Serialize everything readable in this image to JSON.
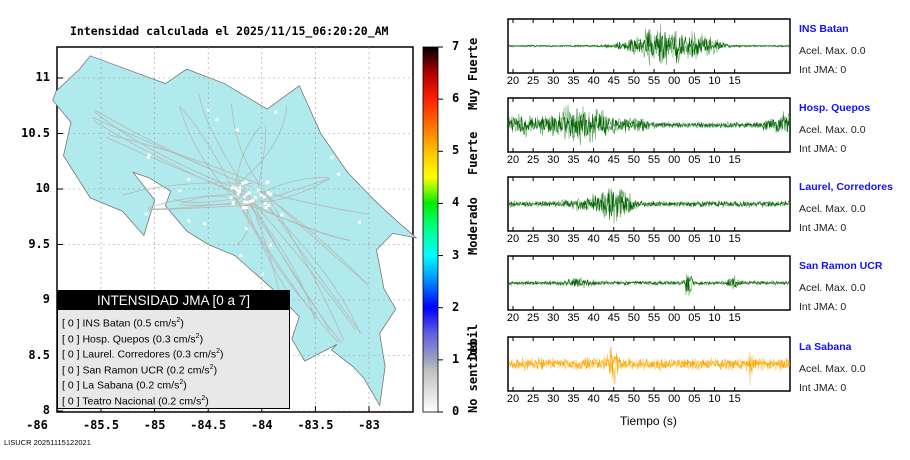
{
  "title": "Intensidad calculada el 2025/11/15_06:20:20_AM",
  "map": {
    "y_ticks": [
      "11",
      "10.5",
      "10",
      "9.5",
      "9",
      "8.5",
      "8"
    ],
    "x_ticks": [
      "-86",
      "-85.5",
      "-85",
      "-84.5",
      "-84",
      "-83.5",
      "-83"
    ],
    "land_color": "#b0eaec"
  },
  "legend": {
    "title": "INTENSIDAD JMA [0 a 7]",
    "rows": [
      {
        "jma": "[ 0 ]",
        "name": "INS Batan",
        "val": "(0.5 cm/s",
        "unit": "2",
        ")": ")"
      },
      {
        "jma": "[ 0 ]",
        "name": "Hosp. Quepos",
        "val": "(0.3 cm/s",
        "unit": "2"
      },
      {
        "jma": "[ 0 ]",
        "name": "Laurel. Corredores",
        "val": "(0.3 cm/s",
        "unit": "2"
      },
      {
        "jma": "[ 0 ]",
        "name": "San Ramon UCR",
        "val": "(0.2 cm/s",
        "unit": "2"
      },
      {
        "jma": "[ 0 ]",
        "name": "La Sabana",
        "val": "(0.2 cm/s",
        "unit": "2"
      },
      {
        "jma": "[ 0 ]",
        "name": "Teatro Nacional",
        "val": "(0.2 cm/s",
        "unit": "2"
      }
    ],
    "close_paren": ")"
  },
  "colorbar": {
    "ticks": [
      "0",
      "1",
      "2",
      "3",
      "4",
      "5",
      "6",
      "7"
    ],
    "words": [
      "No sentido",
      "Debil",
      "Moderado",
      "Fuerte",
      "Muy Fuerte"
    ]
  },
  "chart_data": {
    "type": "line",
    "xlabel": "Tiempo (s)",
    "time_ticks": [
      "20",
      "25",
      "30",
      "35",
      "40",
      "45",
      "50",
      "55",
      "00",
      "05",
      "10",
      "15"
    ],
    "series": [
      {
        "name": "INS Batan",
        "acel": "Acel. Max. 0.0",
        "jma": "Int JMA: 0",
        "color": "#006400"
      },
      {
        "name": "Hosp. Quepos",
        "acel": "Acel. Max. 0.0",
        "jma": "Int JMA: 0",
        "color": "#006400"
      },
      {
        "name": "Laurel, Corredores",
        "acel": "Acel. Max. 0.0",
        "jma": "Int JMA: 0",
        "color": "#006400"
      },
      {
        "name": "San Ramon UCR",
        "acel": "Acel. Max. 0.0",
        "jma": "Int JMA: 0",
        "color": "#006400"
      },
      {
        "name": "La Sabana",
        "acel": "Acel. Max. 0.0",
        "jma": "Int JMA: 0",
        "color": "#ffa500"
      }
    ]
  },
  "footer": "LISUCR 20251115122021"
}
